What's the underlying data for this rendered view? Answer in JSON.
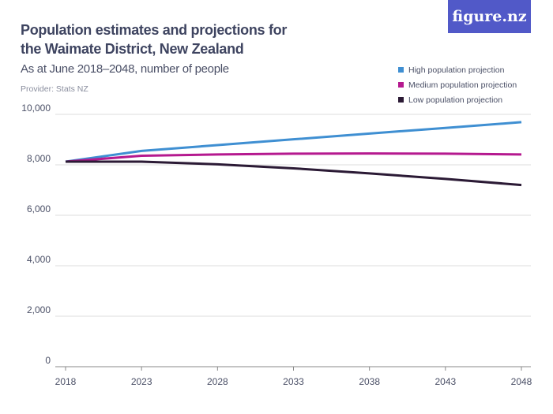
{
  "title": "Population estimates and projections for the Waimate District, New Zealand",
  "subtitle": "As at June 2018–2048, number of people",
  "provider": "Provider: Stats NZ",
  "logo": "figure.nz",
  "chart_data": {
    "type": "line",
    "x": [
      2018,
      2023,
      2028,
      2033,
      2038,
      2043,
      2048
    ],
    "xticks": [
      "2018",
      "2023",
      "2028",
      "2033",
      "2038",
      "2043",
      "2048"
    ],
    "yticks": [
      "0",
      "2,000",
      "4,000",
      "6,000",
      "8,000",
      "10,000"
    ],
    "ylim": [
      0,
      10000
    ],
    "grid": true,
    "legend_position": "top-right",
    "series": [
      {
        "name": "High population projection",
        "color": "#3f8fd2",
        "values": [
          8125,
          8550,
          8780,
          9010,
          9240,
          9460,
          9690
        ]
      },
      {
        "name": "Medium population projection",
        "color": "#b5198f",
        "values": [
          8125,
          8360,
          8410,
          8440,
          8450,
          8440,
          8410
        ]
      },
      {
        "name": "Low population projection",
        "color": "#2b1a35",
        "values": [
          8125,
          8125,
          8020,
          7860,
          7660,
          7440,
          7200
        ]
      }
    ]
  }
}
